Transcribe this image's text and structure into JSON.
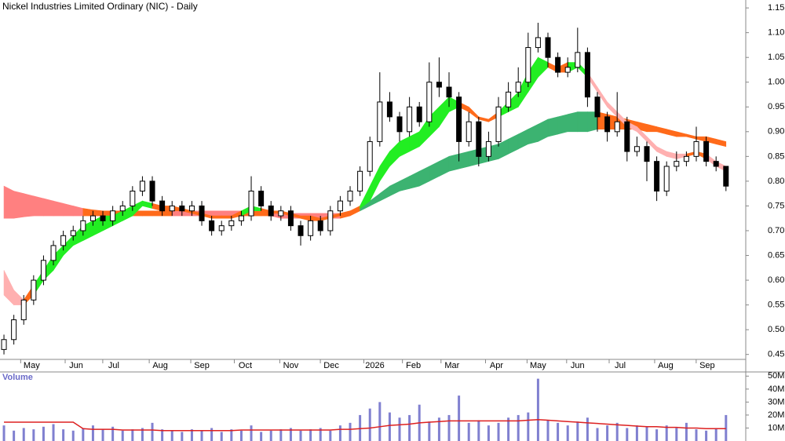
{
  "chart_data": [
    {
      "type": "candlestick",
      "title": "Nickel Industries Limited Ordinary (NIC) - Daily",
      "x": [
        0,
        1,
        2,
        3,
        4,
        5,
        6,
        7,
        8,
        9,
        10,
        11,
        12,
        13,
        14,
        15,
        16,
        17,
        18,
        19,
        20,
        21,
        22,
        23,
        24,
        25,
        26,
        27,
        28,
        29,
        30,
        31,
        32,
        33,
        34,
        35,
        36,
        37,
        38,
        39,
        40,
        41,
        42,
        43,
        44,
        45,
        46,
        47,
        48,
        49,
        50,
        51,
        52,
        53,
        54,
        55,
        56,
        57,
        58,
        59,
        60,
        61,
        62,
        63,
        64,
        65,
        66,
        67,
        68,
        69,
        70,
        71,
        72,
        73
      ],
      "open": [
        0.46,
        0.48,
        0.52,
        0.56,
        0.6,
        0.64,
        0.67,
        0.69,
        0.7,
        0.72,
        0.73,
        0.72,
        0.74,
        0.75,
        0.78,
        0.8,
        0.76,
        0.74,
        0.75,
        0.74,
        0.75,
        0.72,
        0.7,
        0.71,
        0.72,
        0.73,
        0.78,
        0.75,
        0.73,
        0.74,
        0.71,
        0.69,
        0.72,
        0.7,
        0.74,
        0.76,
        0.78,
        0.82,
        0.88,
        0.96,
        0.93,
        0.9,
        0.95,
        0.92,
        1.0,
        0.99,
        0.97,
        0.88,
        0.92,
        0.85,
        0.88,
        0.95,
        0.98,
        1.0,
        1.07,
        1.09,
        1.05,
        1.02,
        1.03,
        1.06,
        0.97,
        0.93,
        0.9,
        0.92,
        0.86,
        0.87,
        0.84,
        0.78,
        0.83,
        0.84,
        0.85,
        0.88,
        0.84,
        0.83
      ],
      "high": [
        0.49,
        0.53,
        0.57,
        0.61,
        0.65,
        0.68,
        0.7,
        0.71,
        0.73,
        0.74,
        0.74,
        0.75,
        0.76,
        0.79,
        0.81,
        0.81,
        0.77,
        0.76,
        0.76,
        0.76,
        0.76,
        0.73,
        0.72,
        0.73,
        0.74,
        0.81,
        0.79,
        0.76,
        0.75,
        0.75,
        0.72,
        0.73,
        0.73,
        0.75,
        0.77,
        0.79,
        0.83,
        0.89,
        1.02,
        0.98,
        0.94,
        0.97,
        0.96,
        1.04,
        1.05,
        1.02,
        0.98,
        0.94,
        0.93,
        0.9,
        0.97,
        1.0,
        1.03,
        1.1,
        1.12,
        1.1,
        1.06,
        1.05,
        1.11,
        1.07,
        0.98,
        0.94,
        0.98,
        0.93,
        0.89,
        0.88,
        0.85,
        0.84,
        0.86,
        0.86,
        0.91,
        0.89,
        0.85,
        0.83
      ],
      "low": [
        0.45,
        0.47,
        0.51,
        0.55,
        0.59,
        0.63,
        0.66,
        0.68,
        0.69,
        0.71,
        0.71,
        0.71,
        0.73,
        0.74,
        0.77,
        0.75,
        0.73,
        0.73,
        0.73,
        0.73,
        0.71,
        0.69,
        0.69,
        0.7,
        0.71,
        0.72,
        0.74,
        0.72,
        0.72,
        0.7,
        0.67,
        0.68,
        0.69,
        0.69,
        0.73,
        0.75,
        0.77,
        0.81,
        0.87,
        0.92,
        0.88,
        0.89,
        0.91,
        0.91,
        0.97,
        0.95,
        0.84,
        0.87,
        0.83,
        0.84,
        0.87,
        0.94,
        0.97,
        0.99,
        1.06,
        1.03,
        1.01,
        1.01,
        1.02,
        0.95,
        0.9,
        0.88,
        0.89,
        0.84,
        0.85,
        0.8,
        0.76,
        0.77,
        0.82,
        0.83,
        0.84,
        0.83,
        0.82,
        0.78
      ],
      "close": [
        0.48,
        0.52,
        0.56,
        0.6,
        0.64,
        0.67,
        0.69,
        0.7,
        0.72,
        0.73,
        0.72,
        0.74,
        0.75,
        0.78,
        0.8,
        0.76,
        0.74,
        0.75,
        0.74,
        0.75,
        0.72,
        0.7,
        0.71,
        0.72,
        0.73,
        0.78,
        0.75,
        0.73,
        0.74,
        0.71,
        0.69,
        0.72,
        0.7,
        0.74,
        0.76,
        0.78,
        0.82,
        0.88,
        0.96,
        0.93,
        0.9,
        0.95,
        0.92,
        1.0,
        0.99,
        0.97,
        0.88,
        0.92,
        0.85,
        0.88,
        0.95,
        0.98,
        1.0,
        1.07,
        1.09,
        1.05,
        1.02,
        1.03,
        1.06,
        0.97,
        0.93,
        0.9,
        0.92,
        0.86,
        0.87,
        0.84,
        0.78,
        0.83,
        0.84,
        0.85,
        0.88,
        0.84,
        0.83,
        0.79
      ],
      "palette": {
        "green": "#22ee22",
        "orange": "#ff6a1a",
        "pink": "#ffb0b0",
        "red": "#ff8080",
        "dark-green": "#3cb371"
      },
      "bands": [
        {
          "upper": [
            0.79,
            0.78,
            0.775,
            0.77,
            0.765,
            0.76,
            0.755,
            0.75,
            0.745,
            0.742,
            0.74,
            0.74,
            0.74,
            0.74,
            0.74,
            0.74,
            0.74,
            0.74,
            0.74,
            0.74,
            0.74,
            0.74,
            0.74,
            0.74,
            0.74,
            0.74,
            0.74,
            0.74,
            0.735,
            0.735,
            0.735,
            0.735,
            0.735,
            0.735,
            0.735,
            0.74,
            0.745,
            0.76,
            0.775,
            0.79,
            0.8,
            0.81,
            0.82,
            0.83,
            0.84,
            0.85,
            0.855,
            0.86,
            0.865,
            0.87,
            0.875,
            0.885,
            0.895,
            0.905,
            0.915,
            0.925,
            0.93,
            0.935,
            0.94,
            0.94,
            0.94,
            0.935,
            0.93,
            0.925,
            0.92,
            0.915,
            0.91,
            0.905,
            0.9,
            0.895,
            0.89,
            0.89,
            0.885,
            0.88
          ],
          "lower": [
            0.725,
            0.725,
            0.728,
            0.73,
            0.73,
            0.73,
            0.73,
            0.73,
            0.73,
            0.73,
            0.73,
            0.73,
            0.73,
            0.73,
            0.73,
            0.73,
            0.73,
            0.73,
            0.73,
            0.73,
            0.73,
            0.73,
            0.73,
            0.73,
            0.73,
            0.73,
            0.73,
            0.73,
            0.725,
            0.725,
            0.725,
            0.725,
            0.725,
            0.725,
            0.725,
            0.73,
            0.74,
            0.75,
            0.76,
            0.77,
            0.78,
            0.785,
            0.79,
            0.8,
            0.81,
            0.82,
            0.825,
            0.83,
            0.835,
            0.84,
            0.845,
            0.855,
            0.865,
            0.875,
            0.88,
            0.89,
            0.895,
            0.9,
            0.9,
            0.9,
            0.905,
            0.905,
            0.905,
            0.905,
            0.905,
            0.9,
            0.9,
            0.895,
            0.89,
            0.89,
            0.885,
            0.88,
            0.875,
            0.87
          ],
          "segment_colors": [
            "red",
            "red",
            "red",
            "red",
            "red",
            "red",
            "red",
            "red",
            "orange",
            "orange",
            "orange",
            "orange",
            "orange",
            "orange",
            "orange",
            "orange",
            "orange",
            "red",
            "red",
            "red",
            "red",
            "red",
            "red",
            "red",
            "orange",
            "orange",
            "orange",
            "red",
            "red",
            "red",
            "red",
            "red",
            "red",
            "red",
            "orange",
            "orange",
            "dark-green",
            "dark-green",
            "dark-green",
            "dark-green",
            "dark-green",
            "dark-green",
            "dark-green",
            "dark-green",
            "dark-green",
            "dark-green",
            "dark-green",
            "dark-green",
            "dark-green",
            "dark-green",
            "dark-green",
            "dark-green",
            "dark-green",
            "dark-green",
            "dark-green",
            "dark-green",
            "dark-green",
            "dark-green",
            "dark-green",
            "dark-green",
            "orange",
            "orange",
            "orange",
            "orange",
            "orange",
            "orange",
            "orange",
            "orange",
            "orange",
            "orange",
            "orange",
            "orange",
            "orange"
          ]
        },
        {
          "upper": [
            0.62,
            0.58,
            0.56,
            0.59,
            0.62,
            0.65,
            0.67,
            0.69,
            0.71,
            0.72,
            0.73,
            0.73,
            0.74,
            0.75,
            0.76,
            0.755,
            0.75,
            0.75,
            0.745,
            0.74,
            0.735,
            0.73,
            0.73,
            0.73,
            0.74,
            0.75,
            0.745,
            0.74,
            0.74,
            0.735,
            0.73,
            0.73,
            0.725,
            0.73,
            0.735,
            0.74,
            0.75,
            0.79,
            0.83,
            0.86,
            0.88,
            0.89,
            0.9,
            0.93,
            0.95,
            0.97,
            0.96,
            0.95,
            0.93,
            0.925,
            0.94,
            0.96,
            0.98,
            1.02,
            1.05,
            1.04,
            1.03,
            1.04,
            1.04,
            1.02,
            0.99,
            0.96,
            0.94,
            0.92,
            0.91,
            0.89,
            0.87,
            0.86,
            0.855,
            0.855,
            0.86,
            0.855,
            0.84,
            0.83
          ],
          "lower": [
            0.57,
            0.55,
            0.55,
            0.57,
            0.6,
            0.62,
            0.65,
            0.67,
            0.68,
            0.69,
            0.7,
            0.71,
            0.72,
            0.73,
            0.75,
            0.745,
            0.74,
            0.74,
            0.74,
            0.735,
            0.73,
            0.725,
            0.725,
            0.725,
            0.73,
            0.74,
            0.74,
            0.735,
            0.735,
            0.73,
            0.725,
            0.72,
            0.72,
            0.725,
            0.73,
            0.735,
            0.745,
            0.76,
            0.8,
            0.83,
            0.85,
            0.86,
            0.87,
            0.89,
            0.91,
            0.94,
            0.95,
            0.94,
            0.925,
            0.92,
            0.93,
            0.94,
            0.95,
            0.98,
            1.01,
            1.03,
            1.02,
            1.02,
            1.03,
            1.01,
            0.98,
            0.95,
            0.93,
            0.91,
            0.9,
            0.88,
            0.86,
            0.85,
            0.845,
            0.85,
            0.855,
            0.845,
            0.83,
            0.82
          ],
          "segment_colors": [
            "pink",
            "pink",
            "orange",
            "green",
            "green",
            "green",
            "green",
            "green",
            "green",
            "green",
            "green",
            "green",
            "green",
            "green",
            "green",
            "orange",
            "orange",
            "orange",
            "orange",
            "orange",
            "orange",
            "orange",
            "orange",
            "orange",
            "green",
            "green",
            "orange",
            "orange",
            "orange",
            "orange",
            "orange",
            "orange",
            "orange",
            "orange",
            "orange",
            "orange",
            "green",
            "green",
            "green",
            "green",
            "green",
            "green",
            "green",
            "green",
            "green",
            "green",
            "orange",
            "orange",
            "orange",
            "orange",
            "green",
            "green",
            "green",
            "green",
            "green",
            "orange",
            "orange",
            "green",
            "green",
            "pink",
            "pink",
            "pink",
            "pink",
            "pink",
            "pink",
            "pink",
            "pink",
            "pink",
            "pink",
            "orange",
            "orange",
            "pink",
            "pink"
          ]
        }
      ],
      "xlim": [
        -0.4,
        75
      ],
      "xticks": [
        {
          "value": 2.8,
          "label": "May"
        },
        {
          "value": 7.3,
          "label": "Jun"
        },
        {
          "value": 11.1,
          "label": "Jul"
        },
        {
          "value": 15.8,
          "label": "Aug"
        },
        {
          "value": 20.0,
          "label": "Sep"
        },
        {
          "value": 24.4,
          "label": "Oct"
        },
        {
          "value": 29.0,
          "label": "Nov"
        },
        {
          "value": 33.1,
          "label": "Dec"
        },
        {
          "value": 37.5,
          "label": "2026"
        },
        {
          "value": 41.4,
          "label": "Feb"
        },
        {
          "value": 45.3,
          "label": "Mar"
        },
        {
          "value": 49.8,
          "label": "Apr"
        },
        {
          "value": 54.0,
          "label": "May"
        },
        {
          "value": 58.0,
          "label": "Jun"
        },
        {
          "value": 62.3,
          "label": "Jul"
        },
        {
          "value": 66.9,
          "label": "Aug"
        },
        {
          "value": 71.1,
          "label": "Sep"
        }
      ],
      "ylim": [
        0.44,
        1.166
      ],
      "yticks": [
        0.45,
        {
          "value": 0.5,
          "label": "0.50"
        },
        0.55,
        {
          "value": 0.6,
          "label": "0.60"
        },
        0.65,
        {
          "value": 0.7,
          "label": "0.70"
        },
        0.75,
        {
          "value": 0.8,
          "label": "0.80"
        },
        0.85,
        {
          "value": 0.9,
          "label": "0.90"
        },
        0.95,
        {
          "value": 1.0,
          "label": "1.00"
        },
        1.05,
        {
          "value": 1.1,
          "label": "1.10"
        },
        1.15
      ]
    },
    {
      "type": "bar",
      "title": "Volume",
      "x": [
        0,
        1,
        2,
        3,
        4,
        5,
        6,
        7,
        8,
        9,
        10,
        11,
        12,
        13,
        14,
        15,
        16,
        17,
        18,
        19,
        20,
        21,
        22,
        23,
        24,
        25,
        26,
        27,
        28,
        29,
        30,
        31,
        32,
        33,
        34,
        35,
        36,
        37,
        38,
        39,
        40,
        41,
        42,
        43,
        44,
        45,
        46,
        47,
        48,
        49,
        50,
        51,
        52,
        53,
        54,
        55,
        56,
        57,
        58,
        59,
        60,
        61,
        62,
        63,
        64,
        65,
        66,
        67,
        68,
        69,
        70,
        71,
        72,
        73
      ],
      "values": [
        12,
        8,
        10,
        9,
        11,
        13,
        9,
        8,
        10,
        12,
        9,
        11,
        8,
        9,
        10,
        14,
        9,
        8,
        7,
        9,
        8,
        10,
        7,
        9,
        8,
        12,
        7,
        8,
        9,
        10,
        8,
        9,
        10,
        8,
        12,
        14,
        20,
        25,
        30,
        22,
        18,
        20,
        28,
        15,
        18,
        20,
        35,
        14,
        16,
        12,
        14,
        18,
        20,
        22,
        48,
        16,
        14,
        12,
        15,
        18,
        10,
        12,
        14,
        10,
        12,
        11,
        9,
        12,
        10,
        14,
        9,
        8,
        10,
        20
      ],
      "color": "#8080d0",
      "average": {
        "color": "#dd2020",
        "values": [
          14.5,
          14.5,
          14.5,
          14.5,
          14.5,
          14.5,
          14.5,
          14.5,
          9.5,
          9,
          9,
          9,
          8.5,
          8.5,
          8.5,
          8.5,
          8,
          8,
          8,
          8,
          8,
          8,
          8,
          8,
          8.5,
          8.5,
          8.5,
          8.5,
          8.5,
          8.5,
          8.5,
          8.5,
          8.5,
          8.5,
          9,
          9,
          9.5,
          10,
          11,
          12,
          12.5,
          13,
          14,
          14.5,
          15,
          15.5,
          15.5,
          15.5,
          15.5,
          15.5,
          15.5,
          15.5,
          15.5,
          16,
          16.5,
          16,
          15.5,
          15,
          14.5,
          14,
          13.5,
          13,
          12.5,
          12,
          11.5,
          11,
          11,
          10.5,
          10.5,
          10,
          10,
          9.5,
          9.5,
          9.5
        ]
      },
      "xlim": [
        -0.4,
        75
      ],
      "ylim": [
        0,
        52
      ],
      "yticks": [
        {
          "value": 10,
          "label": "10M"
        },
        {
          "value": 20,
          "label": "20M"
        },
        {
          "value": 30,
          "label": "30M"
        },
        {
          "value": 40,
          "label": "40M"
        },
        {
          "value": 50,
          "label": "50M"
        }
      ]
    }
  ]
}
